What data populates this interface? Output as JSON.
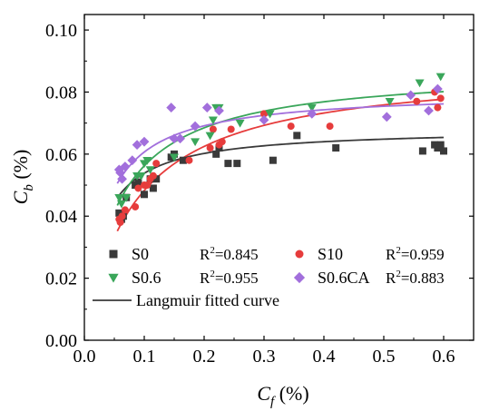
{
  "chart_data": {
    "type": "scatter",
    "xlabel": {
      "main": "C",
      "sub": "f",
      "suffix": " (%)"
    },
    "ylabel": {
      "main": "C",
      "sub": "b",
      "suffix": " (%)"
    },
    "xlim": [
      0.0,
      0.65
    ],
    "ylim": [
      0.0,
      0.105
    ],
    "xticks": [
      0.0,
      0.1,
      0.2,
      0.3,
      0.4,
      0.5,
      0.6
    ],
    "yticks": [
      0.0,
      0.02,
      0.04,
      0.06,
      0.08,
      0.1
    ],
    "xtick_labels": [
      "0.0",
      "0.1",
      "0.2",
      "0.3",
      "0.4",
      "0.5",
      "0.6"
    ],
    "ytick_labels": [
      "0.00",
      "0.02",
      "0.04",
      "0.06",
      "0.08",
      "0.10"
    ],
    "legend": {
      "placement": "lower-center",
      "fit_line_label": "Langmuir fitted curve",
      "r2_prefix": "R",
      "r2_sup": "2"
    },
    "series": [
      {
        "name": "S0",
        "r2": "=0.845",
        "marker": "square",
        "color": "#3a3a3a",
        "points": [
          [
            0.058,
            0.041
          ],
          [
            0.062,
            0.039
          ],
          [
            0.065,
            0.04
          ],
          [
            0.07,
            0.046
          ],
          [
            0.085,
            0.05
          ],
          [
            0.09,
            0.051
          ],
          [
            0.1,
            0.047
          ],
          [
            0.11,
            0.052
          ],
          [
            0.115,
            0.049
          ],
          [
            0.12,
            0.052
          ],
          [
            0.145,
            0.059
          ],
          [
            0.15,
            0.06
          ],
          [
            0.165,
            0.058
          ],
          [
            0.22,
            0.06
          ],
          [
            0.225,
            0.062
          ],
          [
            0.24,
            0.057
          ],
          [
            0.255,
            0.057
          ],
          [
            0.315,
            0.058
          ],
          [
            0.355,
            0.066
          ],
          [
            0.42,
            0.062
          ],
          [
            0.565,
            0.061
          ],
          [
            0.585,
            0.063
          ],
          [
            0.59,
            0.062
          ],
          [
            0.595,
            0.063
          ],
          [
            0.6,
            0.061
          ]
        ],
        "fit": {
          "qmax": 0.0683,
          "k": 37.2,
          "color": "#3a3a3a"
        }
      },
      {
        "name": "S10",
        "r2": "=0.959",
        "marker": "circle",
        "color": "#e63c3c",
        "points": [
          [
            0.058,
            0.039
          ],
          [
            0.06,
            0.038
          ],
          [
            0.063,
            0.04
          ],
          [
            0.068,
            0.042
          ],
          [
            0.085,
            0.043
          ],
          [
            0.09,
            0.049
          ],
          [
            0.1,
            0.05
          ],
          [
            0.105,
            0.05
          ],
          [
            0.11,
            0.052
          ],
          [
            0.115,
            0.053
          ],
          [
            0.12,
            0.057
          ],
          [
            0.175,
            0.058
          ],
          [
            0.21,
            0.062
          ],
          [
            0.215,
            0.068
          ],
          [
            0.225,
            0.063
          ],
          [
            0.23,
            0.064
          ],
          [
            0.245,
            0.068
          ],
          [
            0.3,
            0.073
          ],
          [
            0.345,
            0.069
          ],
          [
            0.41,
            0.069
          ],
          [
            0.555,
            0.077
          ],
          [
            0.585,
            0.08
          ],
          [
            0.59,
            0.075
          ],
          [
            0.595,
            0.078
          ]
        ],
        "fit": {
          "qmax": 0.0885,
          "k": 12.0,
          "color": "#e63c3c"
        }
      },
      {
        "name": "S0.6",
        "r2": "=0.955",
        "marker": "triangle-down",
        "color": "#3aa65a",
        "points": [
          [
            0.058,
            0.046
          ],
          [
            0.062,
            0.044
          ],
          [
            0.07,
            0.046
          ],
          [
            0.088,
            0.053
          ],
          [
            0.095,
            0.053
          ],
          [
            0.1,
            0.057
          ],
          [
            0.105,
            0.058
          ],
          [
            0.11,
            0.055
          ],
          [
            0.15,
            0.059
          ],
          [
            0.185,
            0.064
          ],
          [
            0.21,
            0.066
          ],
          [
            0.215,
            0.071
          ],
          [
            0.22,
            0.075
          ],
          [
            0.225,
            0.075
          ],
          [
            0.26,
            0.07
          ],
          [
            0.31,
            0.073
          ],
          [
            0.38,
            0.075
          ],
          [
            0.51,
            0.077
          ],
          [
            0.56,
            0.083
          ],
          [
            0.595,
            0.085
          ]
        ],
        "fit": {
          "qmax": 0.0876,
          "k": 17.9,
          "color": "#3aa65a"
        }
      },
      {
        "name": "S0.6CA",
        "r2": "=0.883",
        "marker": "diamond",
        "color": "#a26fdc",
        "points": [
          [
            0.058,
            0.055
          ],
          [
            0.06,
            0.054
          ],
          [
            0.063,
            0.052
          ],
          [
            0.068,
            0.056
          ],
          [
            0.08,
            0.058
          ],
          [
            0.088,
            0.063
          ],
          [
            0.1,
            0.064
          ],
          [
            0.145,
            0.075
          ],
          [
            0.15,
            0.065
          ],
          [
            0.16,
            0.065
          ],
          [
            0.185,
            0.069
          ],
          [
            0.205,
            0.075
          ],
          [
            0.225,
            0.074
          ],
          [
            0.3,
            0.071
          ],
          [
            0.38,
            0.073
          ],
          [
            0.505,
            0.072
          ],
          [
            0.545,
            0.079
          ],
          [
            0.575,
            0.074
          ],
          [
            0.59,
            0.081
          ]
        ],
        "fit": {
          "qmax": 0.0803,
          "k": 30.9,
          "color": "#a26fdc"
        }
      }
    ]
  }
}
